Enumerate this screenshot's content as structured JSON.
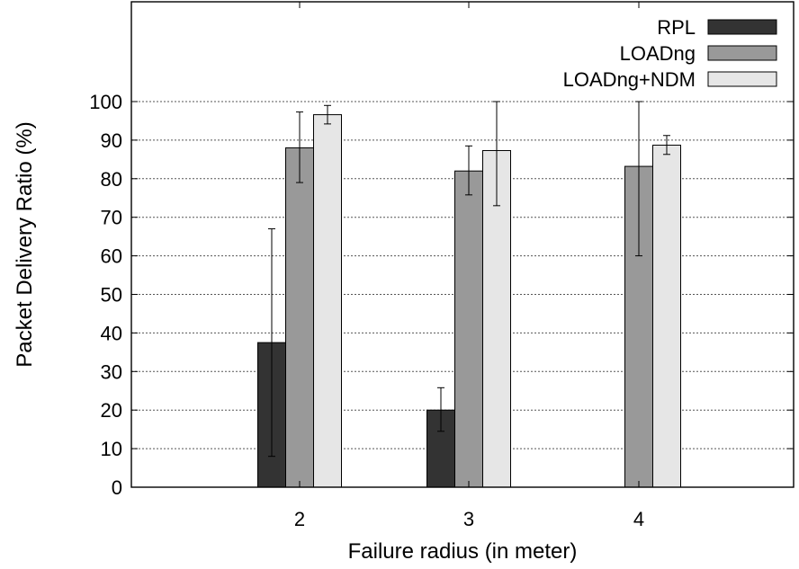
{
  "chart_data": {
    "type": "bar",
    "title": "",
    "xlabel": "Failure radius (in meter)",
    "ylabel": "Packet Delivery Ratio (%)",
    "categories": [
      "2",
      "3",
      "4"
    ],
    "ylim": [
      0,
      100
    ],
    "yticks": [
      0,
      10,
      20,
      30,
      40,
      50,
      60,
      70,
      80,
      90,
      100
    ],
    "grid": true,
    "legend_position": "top-right",
    "series": [
      {
        "name": "RPL",
        "color": "#333333",
        "values": [
          37.5,
          20,
          0
        ],
        "err_low": [
          8,
          14.5,
          null
        ],
        "err_high": [
          67,
          25.8,
          null
        ]
      },
      {
        "name": "LOADng",
        "color": "#999999",
        "values": [
          88,
          82,
          83.2
        ],
        "err_low": [
          79,
          75.8,
          60
        ],
        "err_high": [
          97.3,
          88.5,
          100
        ]
      },
      {
        "name": "LOADng+NDM",
        "color": "#e6e6e6",
        "values": [
          96.6,
          87.3,
          88.7
        ],
        "err_low": [
          94.2,
          73,
          86.3
        ],
        "err_high": [
          99,
          100,
          91.2
        ]
      }
    ]
  }
}
